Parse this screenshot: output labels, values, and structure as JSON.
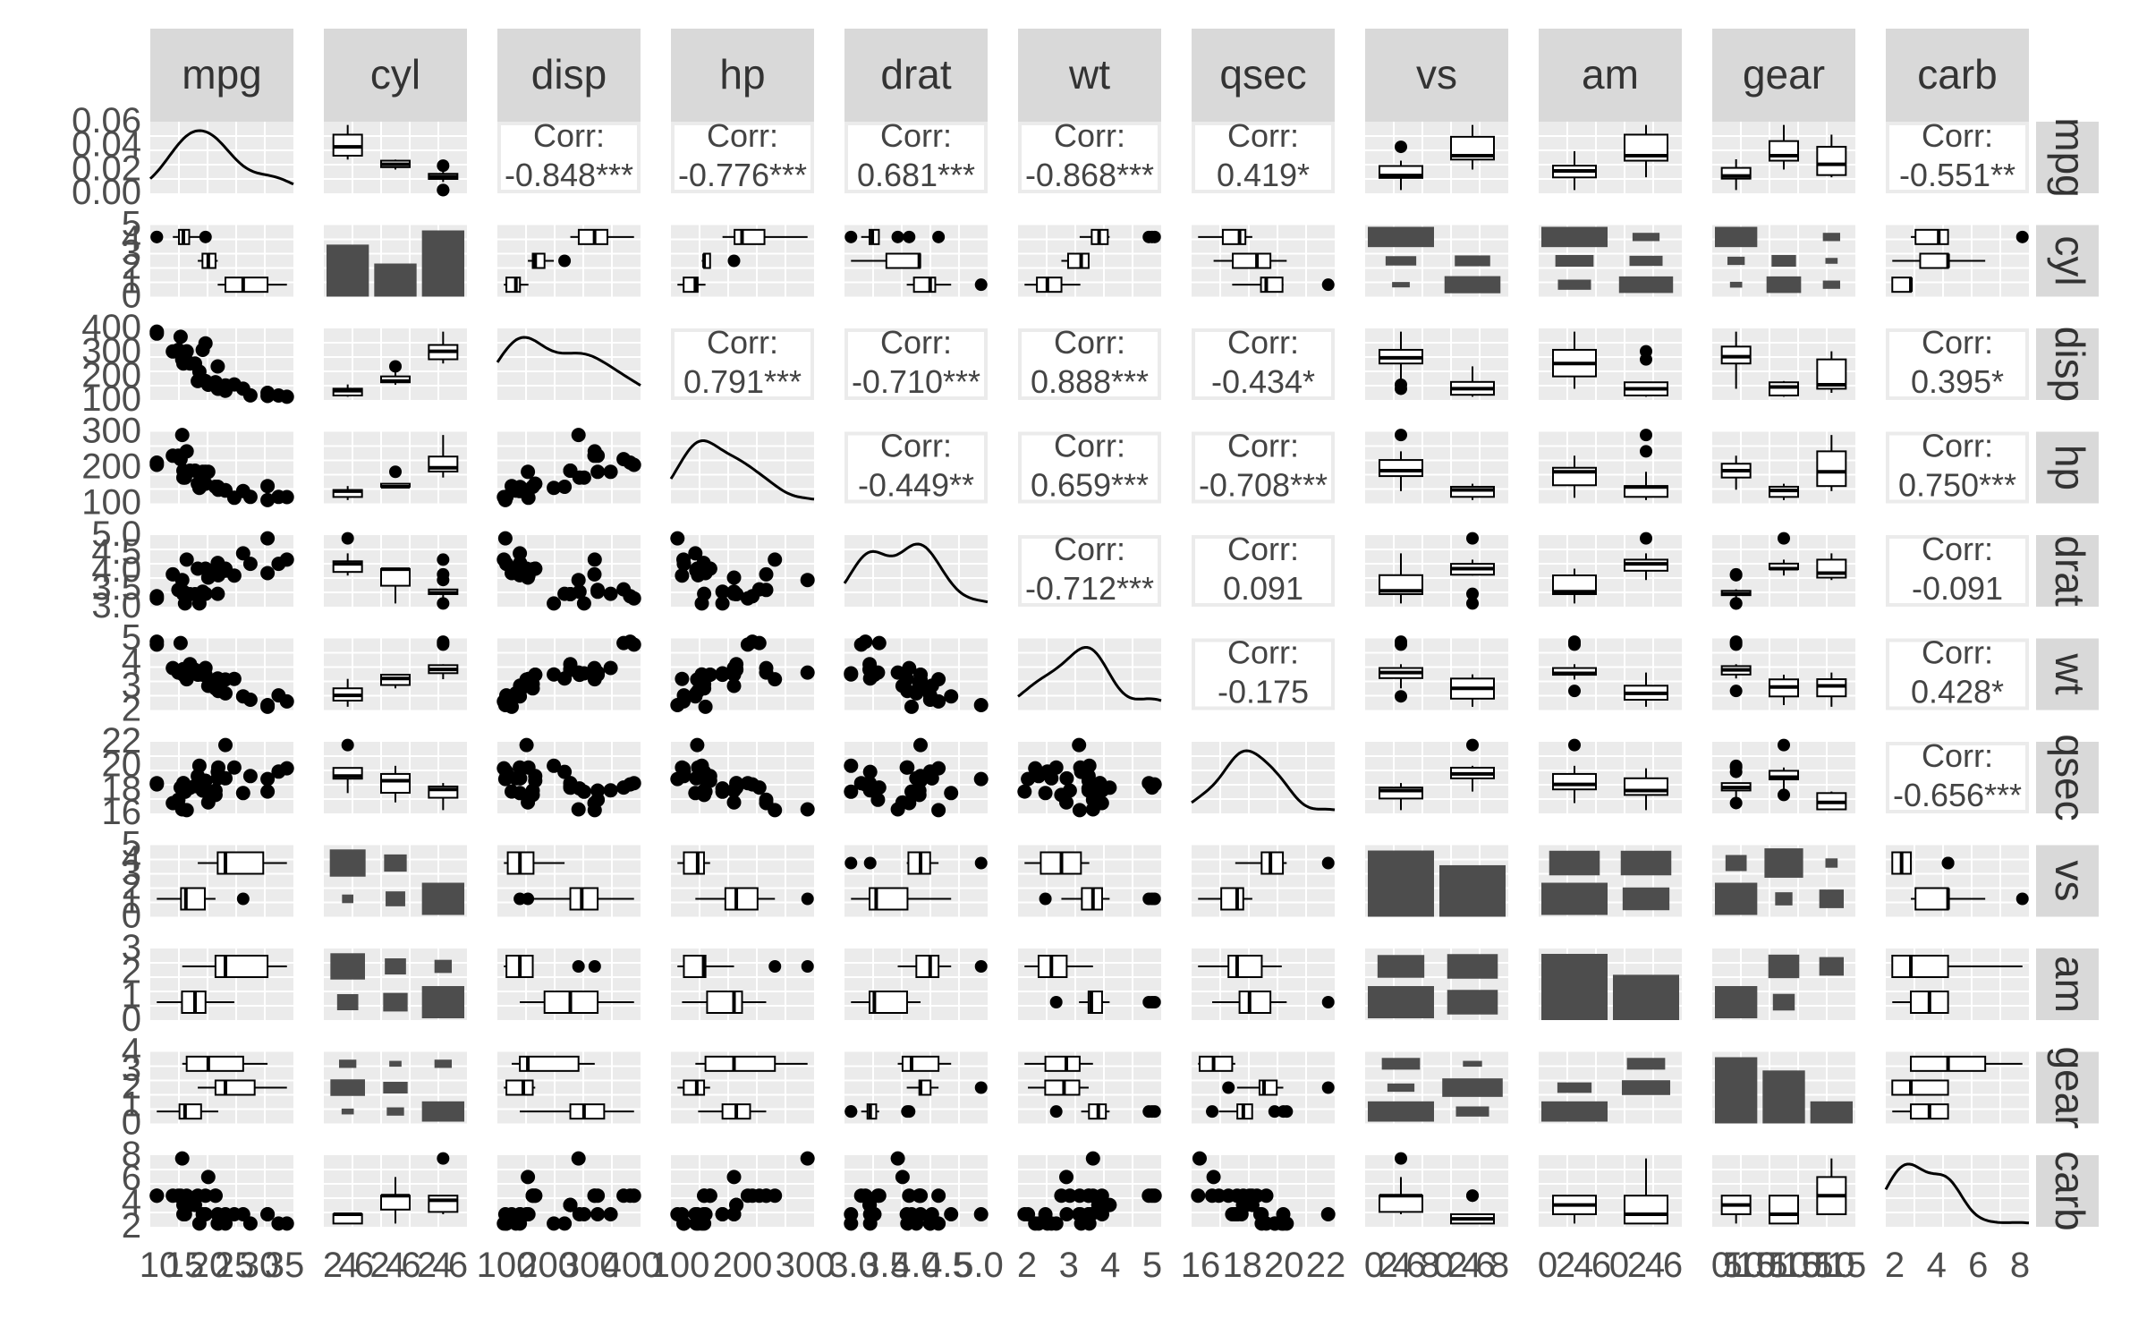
{
  "chart_data": {
    "type": "scatter",
    "subtype": "pairs-matrix",
    "grid": true,
    "colors": {
      "panel_bg": "#ebebeb",
      "strip_bg": "#d9d9d9",
      "ink": "#000000",
      "fill": "#4d4d4d",
      "grid": "#ffffff"
    },
    "variables": [
      "mpg",
      "cyl",
      "disp",
      "hp",
      "drat",
      "wt",
      "qsec",
      "vs",
      "am",
      "gear",
      "carb"
    ],
    "categorical": {
      "cyl": [
        4,
        6,
        8
      ],
      "vs": [
        0,
        1
      ],
      "am": [
        0,
        1
      ],
      "gear": [
        3,
        4,
        5
      ]
    },
    "correlations": [
      {
        "row": "mpg",
        "col": "disp",
        "text": "Corr:",
        "value": "-0.848***"
      },
      {
        "row": "mpg",
        "col": "hp",
        "text": "Corr:",
        "value": "-0.776***"
      },
      {
        "row": "mpg",
        "col": "drat",
        "text": "Corr:",
        "value": "0.681***"
      },
      {
        "row": "mpg",
        "col": "wt",
        "text": "Corr:",
        "value": "-0.868***"
      },
      {
        "row": "mpg",
        "col": "qsec",
        "text": "Corr:",
        "value": "0.419*"
      },
      {
        "row": "mpg",
        "col": "carb",
        "text": "Corr:",
        "value": "-0.551**"
      },
      {
        "row": "disp",
        "col": "hp",
        "text": "Corr:",
        "value": "0.791***"
      },
      {
        "row": "disp",
        "col": "drat",
        "text": "Corr:",
        "value": "-0.710***"
      },
      {
        "row": "disp",
        "col": "wt",
        "text": "Corr:",
        "value": "0.888***"
      },
      {
        "row": "disp",
        "col": "qsec",
        "text": "Corr:",
        "value": "-0.434*"
      },
      {
        "row": "disp",
        "col": "carb",
        "text": "Corr:",
        "value": "0.395*"
      },
      {
        "row": "hp",
        "col": "drat",
        "text": "Corr:",
        "value": "-0.449**"
      },
      {
        "row": "hp",
        "col": "wt",
        "text": "Corr:",
        "value": "0.659***"
      },
      {
        "row": "hp",
        "col": "qsec",
        "text": "Corr:",
        "value": "-0.708***"
      },
      {
        "row": "hp",
        "col": "carb",
        "text": "Corr:",
        "value": "0.750***"
      },
      {
        "row": "drat",
        "col": "wt",
        "text": "Corr:",
        "value": "-0.712***"
      },
      {
        "row": "drat",
        "col": "qsec",
        "text": "Corr:",
        "value": "0.091"
      },
      {
        "row": "drat",
        "col": "carb",
        "text": "Corr:",
        "value": "-0.091"
      },
      {
        "row": "wt",
        "col": "qsec",
        "text": "Corr:",
        "value": "-0.175"
      },
      {
        "row": "wt",
        "col": "carb",
        "text": "Corr:",
        "value": "0.428*"
      },
      {
        "row": "qsec",
        "col": "carb",
        "text": "Corr:",
        "value": "-0.656***"
      }
    ],
    "x_axis_ticks": [
      {
        "var": "mpg",
        "labels": [
          "10",
          "15",
          "20",
          "25",
          "30",
          "35"
        ]
      },
      {
        "var": "cyl",
        "labels": [
          "2",
          "4",
          "6",
          "2",
          "4",
          "6",
          "2",
          "4",
          "6"
        ]
      },
      {
        "var": "disp",
        "labels": [
          "100",
          "200",
          "300",
          "400"
        ]
      },
      {
        "var": "hp",
        "labels": [
          "100",
          "200",
          "300"
        ]
      },
      {
        "var": "drat",
        "labels": [
          "3.0",
          "3.5",
          "4.0",
          "4.5",
          "5.0"
        ]
      },
      {
        "var": "wt",
        "labels": [
          "2",
          "3",
          "4",
          "5"
        ]
      },
      {
        "var": "qsec",
        "labels": [
          "16",
          "18",
          "20",
          "22"
        ]
      },
      {
        "var": "vs",
        "labels": [
          "0",
          "2",
          "4",
          "6",
          "8",
          "0",
          "2",
          "4",
          "6",
          "8"
        ]
      },
      {
        "var": "am",
        "labels": [
          "0",
          "2",
          "4",
          "6",
          "0",
          "2",
          "4",
          "6"
        ]
      },
      {
        "var": "gear",
        "labels": [
          "0",
          "5",
          "10",
          "15",
          "0",
          "5",
          "10",
          "15",
          "0",
          "5",
          "10",
          "15"
        ]
      },
      {
        "var": "carb",
        "labels": [
          "2",
          "4",
          "6",
          "8"
        ]
      }
    ],
    "y_axis_ticks": [
      {
        "var": "mpg",
        "labels": [
          "0.00",
          "0.02",
          "0.04",
          "0.06"
        ]
      },
      {
        "var": "cyl",
        "labels": [
          "0",
          "1",
          "2",
          "3",
          "4",
          "5"
        ]
      },
      {
        "var": "disp",
        "labels": [
          "100",
          "200",
          "300",
          "400"
        ]
      },
      {
        "var": "hp",
        "labels": [
          "100",
          "200",
          "300"
        ]
      },
      {
        "var": "drat",
        "labels": [
          "3.0",
          "3.5",
          "4.0",
          "4.5",
          "5.0"
        ]
      },
      {
        "var": "wt",
        "labels": [
          "2",
          "3",
          "4",
          "5"
        ]
      },
      {
        "var": "qsec",
        "labels": [
          "16",
          "18",
          "20",
          "22"
        ]
      },
      {
        "var": "vs",
        "labels": [
          "0",
          "1",
          "2",
          "3",
          "4",
          "5"
        ]
      },
      {
        "var": "am",
        "labels": [
          "0",
          "1",
          "2",
          "3"
        ]
      },
      {
        "var": "gear",
        "labels": [
          "0",
          "1",
          "2",
          "3",
          "4"
        ]
      },
      {
        "var": "carb",
        "labels": [
          "2",
          "4",
          "6",
          "8"
        ]
      }
    ],
    "data": {
      "mpg": [
        21.0,
        21.0,
        22.8,
        21.4,
        18.7,
        18.1,
        14.3,
        24.4,
        22.8,
        19.2,
        17.8,
        16.4,
        17.3,
        15.2,
        10.4,
        10.4,
        14.7,
        32.4,
        30.4,
        33.9,
        21.5,
        15.5,
        15.2,
        13.3,
        19.2,
        27.3,
        26.0,
        30.4,
        15.8,
        19.7,
        15.0,
        21.4
      ],
      "cyl": [
        6,
        6,
        4,
        6,
        8,
        6,
        8,
        4,
        4,
        6,
        6,
        8,
        8,
        8,
        8,
        8,
        8,
        4,
        4,
        4,
        4,
        8,
        8,
        8,
        8,
        4,
        4,
        4,
        8,
        6,
        8,
        4
      ],
      "disp": [
        160,
        160,
        108,
        258,
        360,
        225,
        360,
        146.7,
        140.8,
        167.6,
        167.6,
        275.8,
        275.8,
        275.8,
        472,
        460,
        440,
        78.7,
        75.7,
        71.1,
        120.1,
        318,
        304,
        350,
        400,
        79,
        120.3,
        95.1,
        351,
        145,
        301,
        121
      ],
      "hp": [
        110,
        110,
        93,
        110,
        175,
        105,
        245,
        62,
        95,
        123,
        123,
        180,
        180,
        180,
        205,
        215,
        230,
        66,
        52,
        65,
        97,
        150,
        150,
        245,
        175,
        66,
        91,
        113,
        264,
        175,
        335,
        109
      ],
      "drat": [
        3.9,
        3.9,
        3.85,
        3.08,
        3.15,
        2.76,
        3.21,
        3.69,
        3.92,
        3.92,
        3.92,
        3.07,
        3.07,
        3.07,
        2.93,
        3.0,
        3.23,
        4.08,
        4.93,
        4.22,
        3.7,
        2.76,
        3.15,
        3.73,
        3.08,
        4.08,
        4.43,
        3.77,
        4.22,
        3.62,
        3.54,
        4.11
      ],
      "wt": [
        2.62,
        2.875,
        2.32,
        3.215,
        3.44,
        3.46,
        3.57,
        3.19,
        3.15,
        3.44,
        3.44,
        4.07,
        3.73,
        3.78,
        5.25,
        5.424,
        5.345,
        2.2,
        1.615,
        1.835,
        2.465,
        3.52,
        3.435,
        3.84,
        3.845,
        1.935,
        2.14,
        1.513,
        3.17,
        2.77,
        3.57,
        2.78
      ],
      "qsec": [
        16.46,
        17.02,
        18.61,
        19.44,
        17.02,
        20.22,
        15.84,
        20.0,
        22.9,
        18.3,
        18.9,
        17.4,
        17.6,
        18.0,
        17.98,
        17.82,
        17.42,
        19.47,
        18.52,
        19.9,
        20.01,
        16.87,
        17.3,
        15.41,
        17.05,
        18.9,
        16.7,
        16.9,
        14.5,
        15.5,
        14.6,
        18.6
      ],
      "vs": [
        0,
        0,
        1,
        1,
        0,
        1,
        0,
        1,
        1,
        1,
        1,
        0,
        0,
        0,
        0,
        0,
        0,
        1,
        1,
        1,
        1,
        0,
        0,
        0,
        0,
        1,
        0,
        1,
        0,
        0,
        0,
        1
      ],
      "am": [
        1,
        1,
        1,
        0,
        0,
        0,
        0,
        0,
        0,
        0,
        0,
        0,
        0,
        0,
        0,
        0,
        0,
        1,
        1,
        1,
        0,
        0,
        0,
        0,
        0,
        1,
        1,
        1,
        1,
        1,
        1,
        1
      ],
      "gear": [
        4,
        4,
        4,
        3,
        3,
        3,
        3,
        4,
        4,
        4,
        4,
        3,
        3,
        3,
        3,
        3,
        3,
        4,
        4,
        4,
        3,
        3,
        3,
        3,
        3,
        4,
        5,
        5,
        5,
        5,
        5,
        4
      ],
      "carb": [
        4,
        4,
        1,
        1,
        2,
        1,
        4,
        2,
        2,
        4,
        4,
        3,
        3,
        3,
        4,
        4,
        4,
        1,
        2,
        1,
        1,
        2,
        2,
        4,
        2,
        1,
        2,
        2,
        4,
        6,
        8,
        2
      ]
    }
  }
}
